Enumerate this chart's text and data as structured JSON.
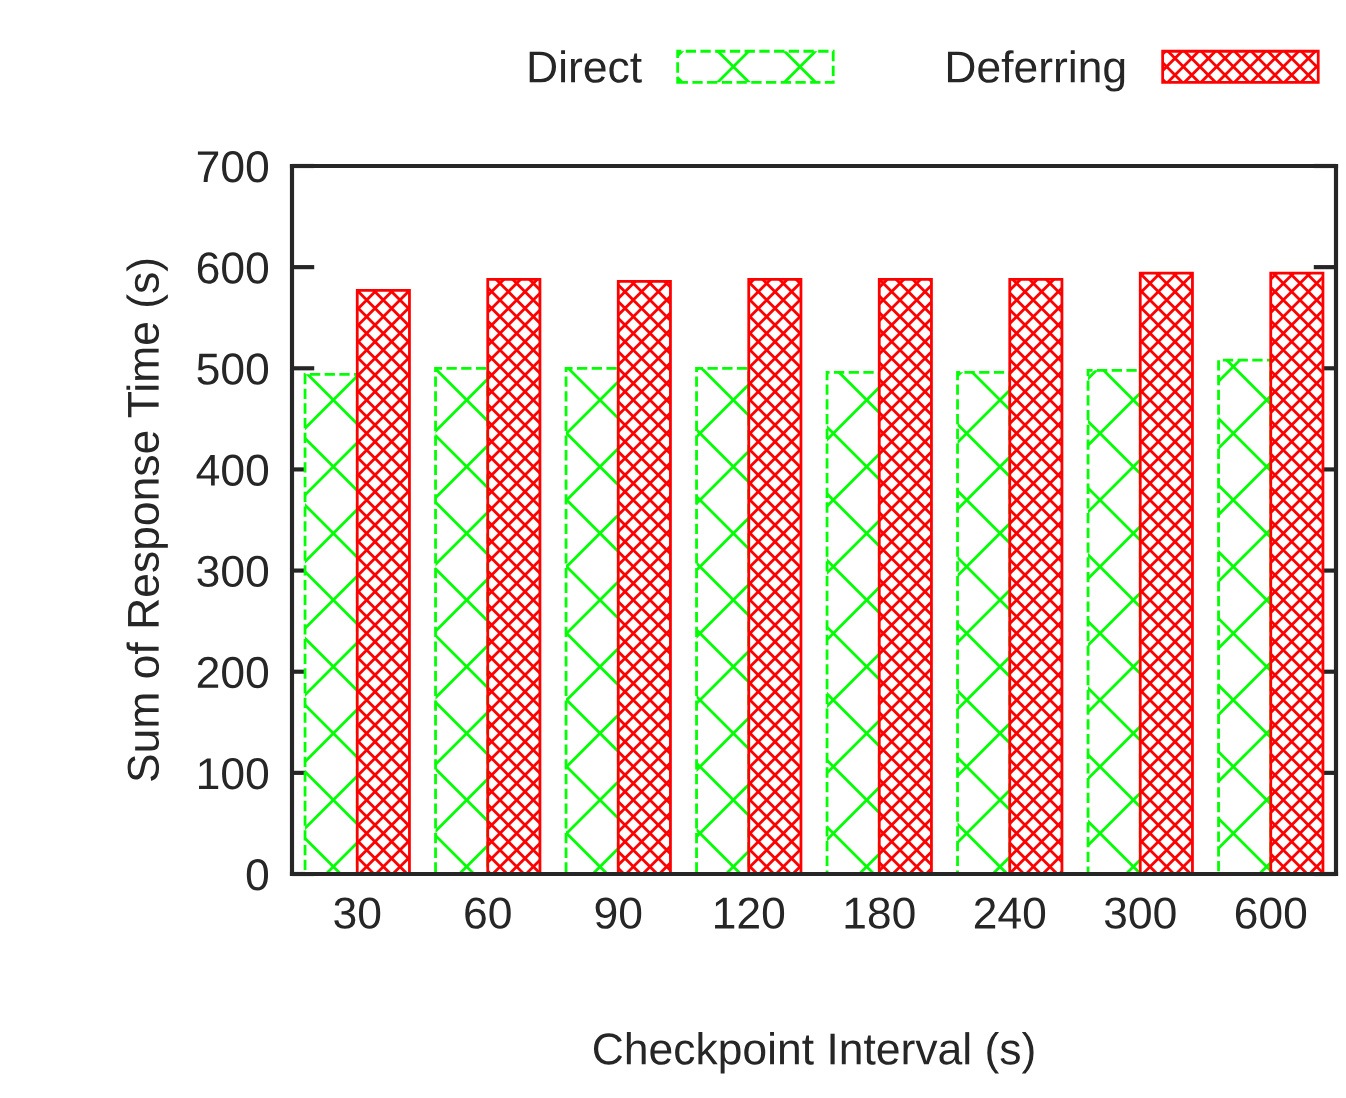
{
  "chart_data": {
    "type": "bar",
    "xlabel": "Checkpoint Interval (s)",
    "ylabel": "Sum of Response Time (s)",
    "categories": [
      "30",
      "60",
      "90",
      "120",
      "180",
      "240",
      "300",
      "600"
    ],
    "series": [
      {
        "name": "Direct",
        "color": "#00ff00",
        "values": [
          494,
          500,
          500,
          500,
          496,
          496,
          498,
          508
        ]
      },
      {
        "name": "Deferring",
        "color": "#ff0000",
        "values": [
          577,
          588,
          586,
          588,
          588,
          588,
          594,
          594
        ]
      }
    ],
    "ylim": [
      0,
      700
    ],
    "yticks": [
      0,
      100,
      200,
      300,
      400,
      500,
      600,
      700
    ],
    "grid": false,
    "legend": "top right"
  }
}
